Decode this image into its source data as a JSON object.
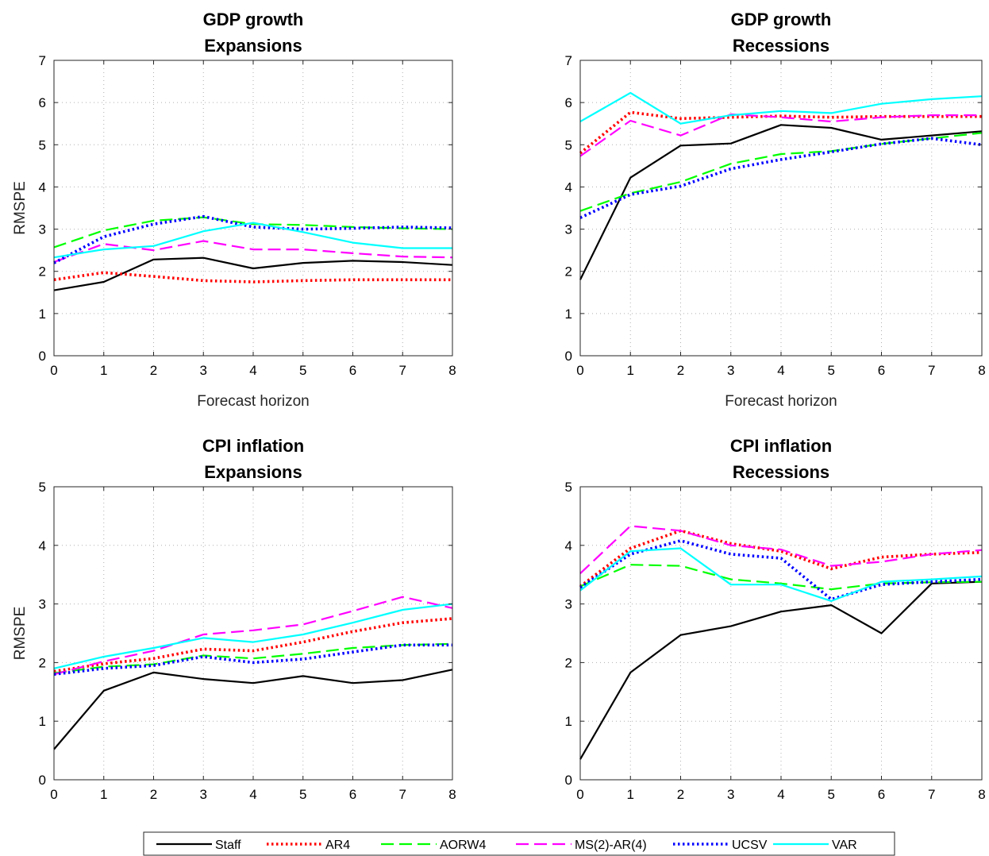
{
  "legend": {
    "items": [
      {
        "name": "Staff",
        "color": "#000000",
        "dash": "solid"
      },
      {
        "name": "AR4",
        "color": "#ff0000",
        "dash": "dotted"
      },
      {
        "name": "AORW4",
        "color": "#00ff00",
        "dash": "dashed"
      },
      {
        "name": "MS(2)-AR(4)",
        "color": "#ff00ff",
        "dash": "dashed"
      },
      {
        "name": "UCSV",
        "color": "#0000ff",
        "dash": "dotted"
      },
      {
        "name": "VAR",
        "color": "#00ffff",
        "dash": "solid"
      }
    ]
  },
  "chart_data": [
    {
      "type": "line",
      "title": [
        "GDP growth",
        "Expansions"
      ],
      "xlabel": "Forecast horizon",
      "ylabel": "RMSPE",
      "x": [
        0,
        1,
        2,
        3,
        4,
        5,
        6,
        7,
        8
      ],
      "xlim": [
        0,
        8
      ],
      "ylim": [
        0,
        7
      ],
      "yticks": [
        0,
        1,
        2,
        3,
        4,
        5,
        6,
        7
      ],
      "grid": true,
      "series": [
        {
          "name": "Staff",
          "values": [
            1.55,
            1.75,
            2.28,
            2.32,
            2.07,
            2.2,
            2.25,
            2.22,
            2.15
          ]
        },
        {
          "name": "AR4",
          "values": [
            1.8,
            1.97,
            1.88,
            1.78,
            1.75,
            1.78,
            1.8,
            1.8,
            1.8
          ]
        },
        {
          "name": "AORW4",
          "values": [
            2.57,
            2.97,
            3.2,
            3.28,
            3.12,
            3.1,
            3.05,
            3.02,
            3.0
          ]
        },
        {
          "name": "MS(2)-AR(4)",
          "values": [
            2.22,
            2.65,
            2.5,
            2.72,
            2.52,
            2.52,
            2.43,
            2.35,
            2.33
          ]
        },
        {
          "name": "UCSV",
          "values": [
            2.2,
            2.82,
            3.12,
            3.3,
            3.05,
            3.0,
            3.02,
            3.05,
            3.03
          ]
        },
        {
          "name": "VAR",
          "values": [
            2.33,
            2.52,
            2.6,
            2.95,
            3.15,
            2.93,
            2.68,
            2.55,
            2.55
          ]
        }
      ]
    },
    {
      "type": "line",
      "title": [
        "GDP growth",
        "Recessions"
      ],
      "xlabel": "Forecast horizon",
      "ylabel": "",
      "x": [
        0,
        1,
        2,
        3,
        4,
        5,
        6,
        7,
        8
      ],
      "xlim": [
        0,
        8
      ],
      "ylim": [
        0,
        7
      ],
      "yticks": [
        0,
        1,
        2,
        3,
        4,
        5,
        6,
        7
      ],
      "grid": true,
      "series": [
        {
          "name": "Staff",
          "values": [
            1.8,
            4.22,
            4.98,
            5.03,
            5.47,
            5.4,
            5.12,
            5.22,
            5.32
          ]
        },
        {
          "name": "AR4",
          "values": [
            4.8,
            5.77,
            5.62,
            5.65,
            5.68,
            5.65,
            5.67,
            5.67,
            5.67
          ]
        },
        {
          "name": "AORW4",
          "values": [
            3.43,
            3.85,
            4.12,
            4.55,
            4.78,
            4.85,
            5.02,
            5.15,
            5.28
          ]
        },
        {
          "name": "MS(2)-AR(4)",
          "values": [
            4.73,
            5.57,
            5.22,
            5.72,
            5.65,
            5.55,
            5.65,
            5.7,
            5.7
          ]
        },
        {
          "name": "UCSV",
          "values": [
            3.27,
            3.82,
            4.02,
            4.43,
            4.65,
            4.83,
            5.02,
            5.15,
            5.0
          ]
        },
        {
          "name": "VAR",
          "values": [
            5.55,
            6.23,
            5.5,
            5.7,
            5.8,
            5.75,
            5.97,
            6.08,
            6.15
          ]
        }
      ]
    },
    {
      "type": "line",
      "title": [
        "CPI inflation",
        "Expansions"
      ],
      "xlabel": "",
      "ylabel": "RMSPE",
      "x": [
        0,
        1,
        2,
        3,
        4,
        5,
        6,
        7,
        8
      ],
      "xlim": [
        0,
        8
      ],
      "ylim": [
        0,
        5
      ],
      "yticks": [
        0,
        1,
        2,
        3,
        4,
        5
      ],
      "grid": true,
      "series": [
        {
          "name": "Staff",
          "values": [
            0.52,
            1.52,
            1.83,
            1.72,
            1.65,
            1.77,
            1.65,
            1.7,
            1.88
          ]
        },
        {
          "name": "AR4",
          "values": [
            1.85,
            1.98,
            2.07,
            2.23,
            2.2,
            2.35,
            2.53,
            2.68,
            2.75
          ]
        },
        {
          "name": "AORW4",
          "values": [
            1.82,
            1.93,
            1.97,
            2.12,
            2.07,
            2.15,
            2.25,
            2.3,
            2.32
          ]
        },
        {
          "name": "MS(2)-AR(4)",
          "values": [
            1.8,
            2.02,
            2.2,
            2.48,
            2.55,
            2.65,
            2.88,
            3.12,
            2.93
          ]
        },
        {
          "name": "UCSV",
          "values": [
            1.8,
            1.9,
            1.95,
            2.1,
            2.0,
            2.06,
            2.18,
            2.3,
            2.3
          ]
        },
        {
          "name": "VAR",
          "values": [
            1.9,
            2.1,
            2.25,
            2.42,
            2.35,
            2.48,
            2.68,
            2.9,
            3.0
          ]
        }
      ]
    },
    {
      "type": "line",
      "title": [
        "CPI inflation",
        "Recessions"
      ],
      "xlabel": "",
      "ylabel": "",
      "x": [
        0,
        1,
        2,
        3,
        4,
        5,
        6,
        7,
        8
      ],
      "xlim": [
        0,
        8
      ],
      "ylim": [
        0,
        5
      ],
      "yticks": [
        0,
        1,
        2,
        3,
        4,
        5
      ],
      "grid": true,
      "series": [
        {
          "name": "Staff",
          "values": [
            0.35,
            1.83,
            2.47,
            2.62,
            2.87,
            2.98,
            2.5,
            3.35,
            3.38
          ]
        },
        {
          "name": "AR4",
          "values": [
            3.3,
            3.95,
            4.25,
            4.03,
            3.9,
            3.6,
            3.8,
            3.85,
            3.88
          ]
        },
        {
          "name": "AORW4",
          "values": [
            3.3,
            3.67,
            3.65,
            3.42,
            3.35,
            3.25,
            3.35,
            3.37,
            3.38
          ]
        },
        {
          "name": "MS(2)-AR(4)",
          "values": [
            3.52,
            4.33,
            4.25,
            4.0,
            3.93,
            3.65,
            3.72,
            3.85,
            3.92
          ]
        },
        {
          "name": "UCSV",
          "values": [
            3.28,
            3.85,
            4.08,
            3.85,
            3.78,
            3.08,
            3.33,
            3.38,
            3.42
          ]
        },
        {
          "name": "VAR",
          "values": [
            3.23,
            3.9,
            3.95,
            3.33,
            3.33,
            3.05,
            3.38,
            3.42,
            3.47
          ]
        }
      ]
    }
  ]
}
